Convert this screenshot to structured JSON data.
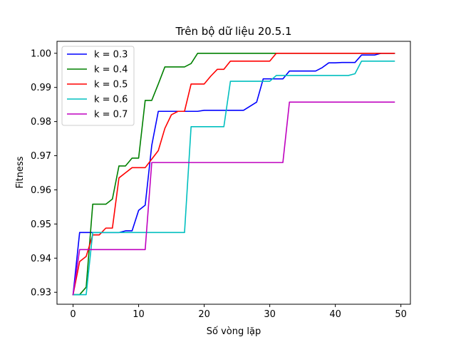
{
  "chart_data": {
    "type": "line",
    "title": "Trên bộ dữ liệu 20.5.1",
    "xlabel": "Số vòng lặp",
    "ylabel": "Fitness",
    "xlim": [
      -2.45,
      51.45
    ],
    "ylim": [
      0.9265,
      1.0035
    ],
    "xticks": [
      0,
      10,
      20,
      30,
      40,
      50
    ],
    "xtick_labels": [
      "0",
      "10",
      "20",
      "30",
      "40",
      "50"
    ],
    "yticks": [
      0.93,
      0.94,
      0.95,
      0.96,
      0.97,
      0.98,
      0.99,
      1.0
    ],
    "ytick_labels": [
      "0.93",
      "0.94",
      "0.95",
      "0.96",
      "0.97",
      "0.98",
      "0.99",
      "1.00"
    ],
    "grid": false,
    "legend_position": "top-left",
    "x": [
      0,
      1,
      2,
      3,
      4,
      5,
      6,
      7,
      8,
      9,
      10,
      11,
      12,
      13,
      14,
      15,
      16,
      17,
      18,
      19,
      20,
      21,
      22,
      23,
      24,
      25,
      26,
      27,
      28,
      29,
      30,
      31,
      32,
      33,
      34,
      35,
      36,
      37,
      38,
      39,
      40,
      41,
      42,
      43,
      44,
      45,
      46,
      47,
      48,
      49
    ],
    "series": [
      {
        "name": "k = 0.3",
        "color": "#0000ff",
        "values": [
          0.9293,
          0.9475,
          0.9475,
          0.9475,
          0.9475,
          0.9475,
          0.9475,
          0.9475,
          0.948,
          0.948,
          0.954,
          0.9555,
          0.973,
          0.983,
          0.983,
          0.983,
          0.983,
          0.983,
          0.983,
          0.983,
          0.9833,
          0.9833,
          0.9833,
          0.9833,
          0.9833,
          0.9833,
          0.9833,
          0.9845,
          0.9857,
          0.9925,
          0.9925,
          0.9925,
          0.9925,
          0.9948,
          0.9948,
          0.9948,
          0.9948,
          0.9948,
          0.9958,
          0.9972,
          0.9972,
          0.9973,
          0.9973,
          0.9973,
          0.9995,
          0.9995,
          0.9995,
          1.0,
          1.0,
          1.0
        ]
      },
      {
        "name": "k = 0.4",
        "color": "#008000",
        "values": [
          0.9293,
          0.9293,
          0.9315,
          0.9558,
          0.9558,
          0.9558,
          0.9573,
          0.967,
          0.967,
          0.9693,
          0.9693,
          0.9862,
          0.9862,
          0.991,
          0.996,
          0.996,
          0.996,
          0.996,
          0.997,
          1.0,
          1.0,
          1.0,
          1.0,
          1.0,
          1.0,
          1.0,
          1.0,
          1.0,
          1.0,
          1.0,
          1.0,
          1.0,
          1.0,
          1.0,
          1.0,
          1.0,
          1.0,
          1.0,
          1.0,
          1.0,
          1.0,
          1.0,
          1.0,
          1.0,
          1.0,
          1.0,
          1.0,
          1.0,
          1.0,
          1.0
        ]
      },
      {
        "name": "k = 0.5",
        "color": "#ff0000",
        "values": [
          0.9293,
          0.939,
          0.9405,
          0.9468,
          0.9468,
          0.9488,
          0.9488,
          0.9635,
          0.965,
          0.9665,
          0.9665,
          0.9665,
          0.969,
          0.9715,
          0.978,
          0.982,
          0.983,
          0.983,
          0.991,
          0.991,
          0.991,
          0.9933,
          0.9953,
          0.9953,
          0.9977,
          0.9977,
          0.9977,
          0.9977,
          0.9977,
          0.9977,
          0.9977,
          1.0,
          1.0,
          1.0,
          1.0,
          1.0,
          1.0,
          1.0,
          1.0,
          1.0,
          1.0,
          1.0,
          1.0,
          1.0,
          1.0,
          1.0,
          1.0,
          1.0,
          1.0,
          1.0
        ]
      },
      {
        "name": "k = 0.6",
        "color": "#00bfbf",
        "values": [
          0.9293,
          0.9293,
          0.9293,
          0.9475,
          0.9475,
          0.9475,
          0.9475,
          0.9475,
          0.9475,
          0.9475,
          0.9475,
          0.9475,
          0.9475,
          0.9475,
          0.9475,
          0.9475,
          0.9475,
          0.9475,
          0.9785,
          0.9785,
          0.9785,
          0.9785,
          0.9785,
          0.9785,
          0.9918,
          0.9918,
          0.9918,
          0.9918,
          0.9918,
          0.9918,
          0.9918,
          0.9935,
          0.9935,
          0.9935,
          0.9935,
          0.9935,
          0.9935,
          0.9935,
          0.9935,
          0.9935,
          0.9935,
          0.9935,
          0.9935,
          0.994,
          0.9977,
          0.9977,
          0.9977,
          0.9977,
          0.9977,
          0.9977
        ]
      },
      {
        "name": "k = 0.7",
        "color": "#bf00bf",
        "values": [
          0.9293,
          0.9425,
          0.9425,
          0.9425,
          0.9425,
          0.9425,
          0.9425,
          0.9425,
          0.9425,
          0.9425,
          0.9425,
          0.9425,
          0.968,
          0.968,
          0.968,
          0.968,
          0.968,
          0.968,
          0.968,
          0.968,
          0.968,
          0.968,
          0.968,
          0.968,
          0.968,
          0.968,
          0.968,
          0.968,
          0.968,
          0.968,
          0.968,
          0.968,
          0.968,
          0.9857,
          0.9857,
          0.9857,
          0.9857,
          0.9857,
          0.9857,
          0.9857,
          0.9857,
          0.9857,
          0.9857,
          0.9857,
          0.9857,
          0.9857,
          0.9857,
          0.9857,
          0.9857,
          0.9857
        ]
      }
    ]
  }
}
